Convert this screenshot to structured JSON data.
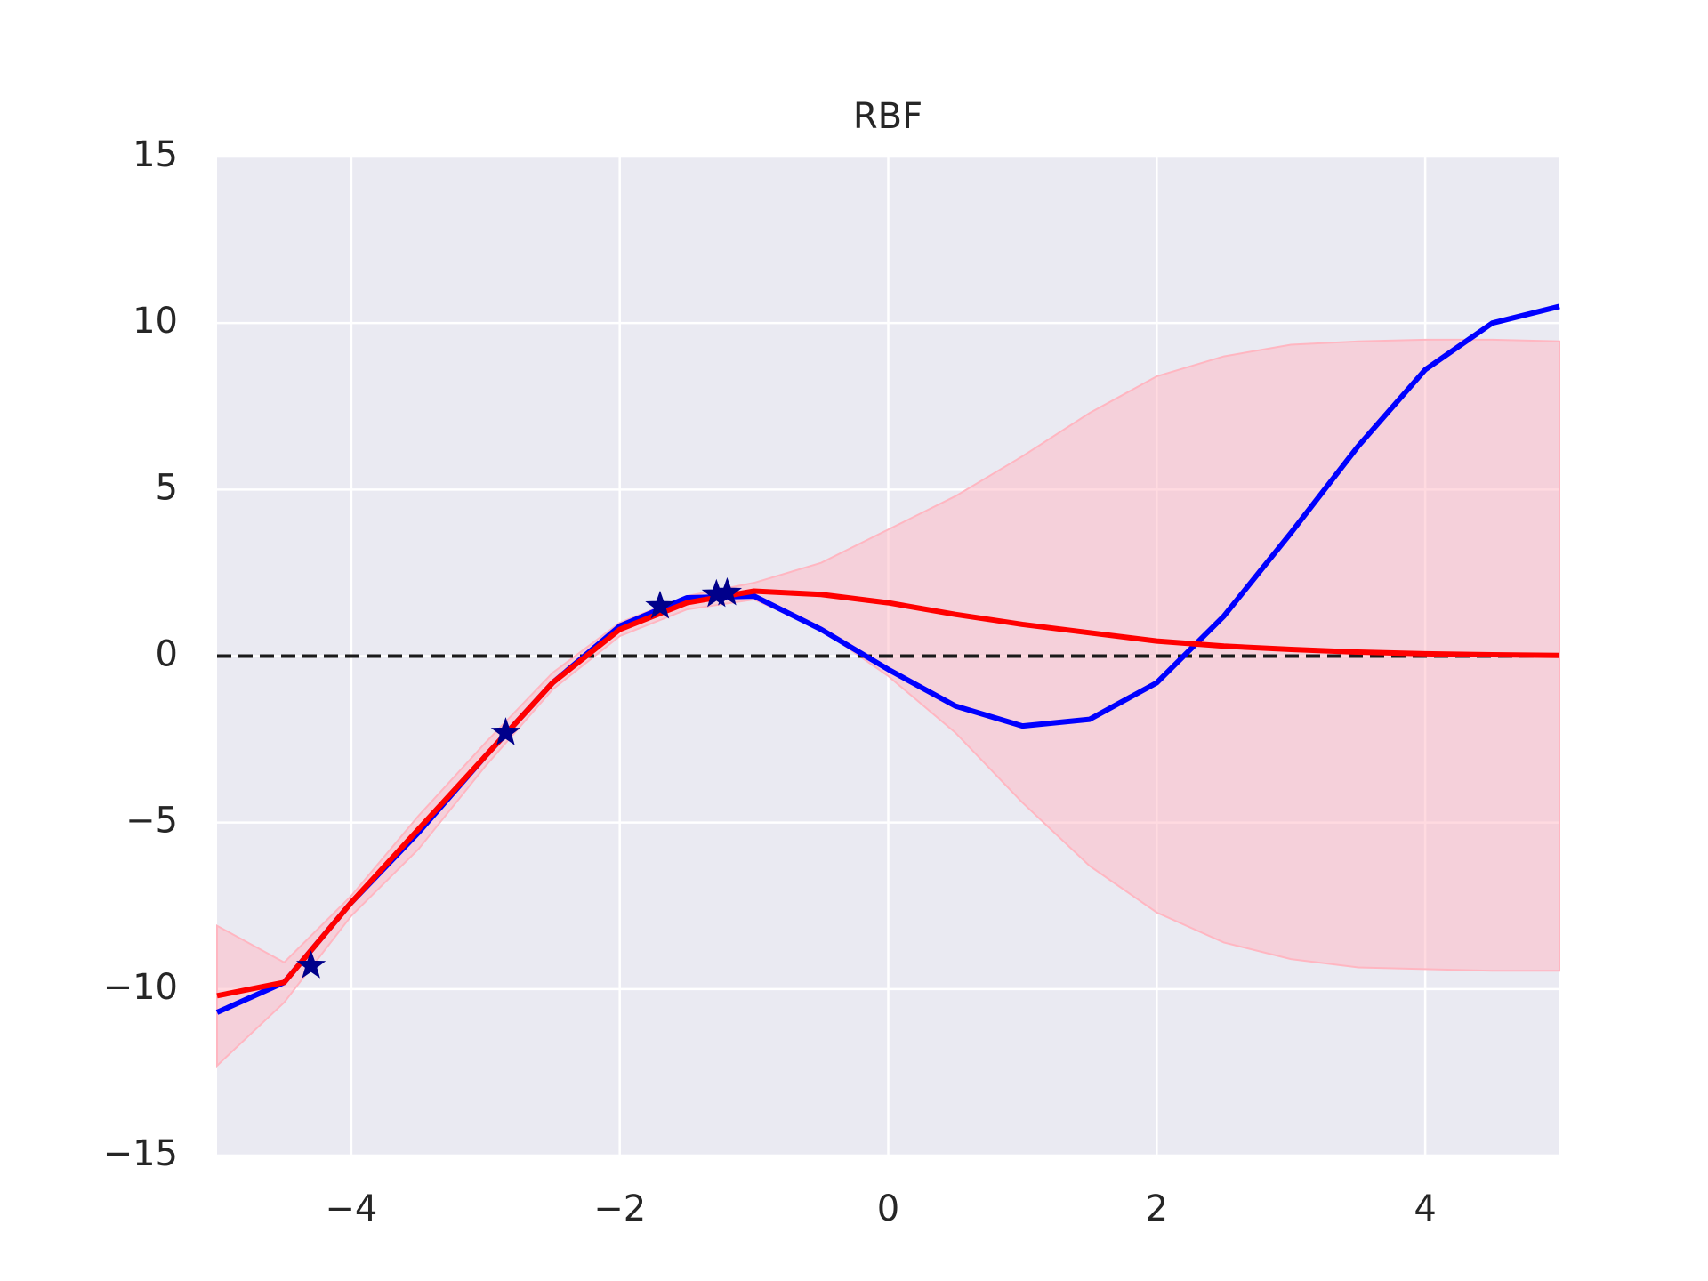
{
  "chart_data": {
    "type": "line",
    "title": "RBF",
    "x": [
      -5,
      -4.5,
      -4,
      -3.5,
      -3,
      -2.5,
      -2,
      -1.5,
      -1,
      -0.5,
      0,
      0.5,
      1,
      1.5,
      2,
      2.5,
      3,
      3.5,
      4,
      4.5,
      5
    ],
    "series": [
      {
        "color": "#0000ff",
        "values": [
          -10.7,
          -9.8,
          -7.4,
          -5.3,
          -3.0,
          -0.8,
          0.9,
          1.75,
          1.8,
          0.8,
          -0.4,
          -1.5,
          -2.1,
          -1.9,
          -0.8,
          1.2,
          3.7,
          6.3,
          8.6,
          10.0,
          10.5
        ]
      },
      {
        "color": "#ff0000",
        "values": [
          -10.2,
          -9.8,
          -7.4,
          -5.2,
          -3.0,
          -0.8,
          0.8,
          1.6,
          1.95,
          1.85,
          1.6,
          1.25,
          0.95,
          0.7,
          0.45,
          0.3,
          0.2,
          0.12,
          0.07,
          0.04,
          0.02
        ]
      }
    ],
    "band": {
      "color": "#ffb6c1",
      "upper": [
        -8.1,
        -9.2,
        -7.2,
        -4.8,
        -2.6,
        -0.5,
        1.0,
        1.8,
        2.2,
        2.8,
        3.8,
        4.8,
        6.0,
        7.3,
        8.4,
        9.0,
        9.35,
        9.45,
        9.5,
        9.5,
        9.45
      ],
      "lower": [
        -12.3,
        -10.4,
        -7.8,
        -5.8,
        -3.3,
        -1.0,
        0.6,
        1.4,
        1.7,
        0.8,
        -0.6,
        -2.3,
        -4.4,
        -6.3,
        -7.7,
        -8.6,
        -9.1,
        -9.35,
        -9.4,
        -9.45,
        -9.45
      ]
    },
    "points": {
      "color": "#00008b",
      "x": [
        -4.3,
        -2.85,
        -1.7,
        -1.28,
        -1.2
      ],
      "y": [
        -9.3,
        -2.3,
        1.5,
        1.85,
        1.9
      ]
    },
    "hline": 0,
    "xlim": [
      -5,
      5
    ],
    "ylim": [
      -15,
      15
    ],
    "xticks": [
      {
        "value": -4,
        "label": "−4"
      },
      {
        "value": -2,
        "label": "−2"
      },
      0,
      2,
      4
    ],
    "yticks": [
      {
        "value": -15,
        "label": "−15"
      },
      {
        "value": -10,
        "label": "−10"
      },
      {
        "value": -5,
        "label": "−5"
      },
      0,
      5,
      10,
      15
    ],
    "grid": true
  }
}
